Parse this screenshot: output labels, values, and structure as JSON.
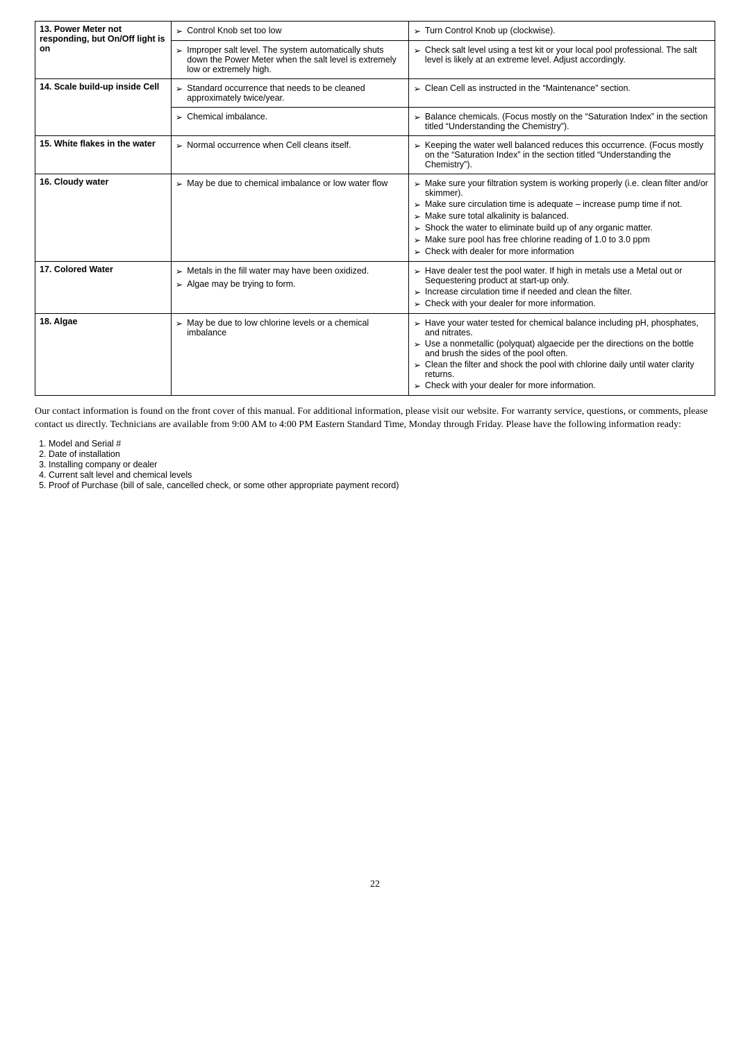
{
  "rows": [
    {
      "col1": "13.  Power Meter not responding, but On/Off light is on",
      "col1_rowspan": 2,
      "col2_items": [
        {
          "text": "Control Knob set too low"
        }
      ],
      "col3_items": [
        {
          "text": "Turn Control Knob up (clockwise)."
        }
      ]
    },
    {
      "col1": null,
      "col2_items": [
        {
          "text": "Improper salt level.  The system automatically shuts down the Power Meter when the salt level is extremely low or extremely high."
        }
      ],
      "col3_items": [
        {
          "text": "Check salt level using a test kit or your local pool professional.  The salt level is likely at an extreme level.  Adjust accordingly."
        }
      ]
    },
    {
      "col1": "14.  Scale build-up inside Cell",
      "col1_rowspan": 2,
      "col2_items": [
        {
          "text": "Standard occurrence that needs to be cleaned approximately twice/year."
        }
      ],
      "col3_items": [
        {
          "text": "Clean Cell as instructed in the “Maintenance” section."
        }
      ]
    },
    {
      "col1": null,
      "col2_items": [
        {
          "text": "Chemical imbalance."
        }
      ],
      "col2_center": true,
      "col3_items": [
        {
          "text": "Balance chemicals.  (Focus mostly on the “Saturation Index” in the section titled “Understanding the Chemistry”)."
        }
      ]
    },
    {
      "col1": "15.  White flakes in the water",
      "col2_items": [
        {
          "text": "Normal occurrence when Cell cleans itself."
        }
      ],
      "col2_center": true,
      "col3_items": [
        {
          "text": "Keeping the water well balanced reduces this occurrence.  (Focus mostly on the “Saturation Index” in the section titled “Understanding the Chemistry”)."
        }
      ]
    },
    {
      "col1": "16.  Cloudy water",
      "col2_items": [
        {
          "text": "May be due to chemical imbalance or low water flow"
        }
      ],
      "col2_center": true,
      "col3_items": [
        {
          "text": "Make sure your filtration system is working properly (i.e. clean filter and/or skimmer)."
        },
        {
          "text": "Make sure circulation time is adequate – increase pump time if not."
        },
        {
          "text": "Make sure total alkalinity is balanced."
        },
        {
          "text": "Shock the water to eliminate build up of any organic matter."
        },
        {
          "text": "Make sure pool has free chlorine reading of 1.0 to 3.0 ppm"
        },
        {
          "text": "Check with dealer for more information"
        }
      ]
    },
    {
      "col1": "17.  Colored Water",
      "col2_items": [
        {
          "text": "Metals in the fill water may have been oxidized."
        },
        {
          "text": "Algae may be trying to form."
        }
      ],
      "col2_center": true,
      "col3_items": [
        {
          "text": "Have dealer test the pool water. If high in metals use a Metal out or Sequestering product at start-up only."
        },
        {
          "text": "Increase circulation time if needed and clean the filter."
        },
        {
          "text": "Check with your dealer for more information."
        }
      ]
    },
    {
      "col1": "18.  Algae",
      "col2_items": [
        {
          "text": "May be due to low chlorine levels or a chemical imbalance"
        }
      ],
      "col2_center": true,
      "col3_items": [
        {
          "text": "Have your water tested for chemical balance including pH, phosphates, and nitrates."
        },
        {
          "text": "Use a nonmetallic (polyquat) algaecide per the directions on the bottle and brush the sides of the pool often."
        },
        {
          "text": "Clean the filter and shock the pool with chlorine daily until water clarity returns."
        },
        {
          "text": "Check with your dealer for more information."
        }
      ]
    }
  ],
  "paragraph": "Our contact information is found on the front cover of this manual. For additional information, please visit our website. For warranty service, questions, or comments, please contact us directly.  Technicians are available from 9:00 AM to 4:00 PM Eastern Standard Time, Monday through Friday.  Please have the following information ready:",
  "list": [
    "Model and Serial #",
    "Date of installation",
    "Installing company or dealer",
    "Current salt level and chemical levels",
    "Proof of Purchase (bill of sale, cancelled check, or some other appropriate payment record)"
  ],
  "page_number": "22",
  "arrow_glyph": "➢"
}
